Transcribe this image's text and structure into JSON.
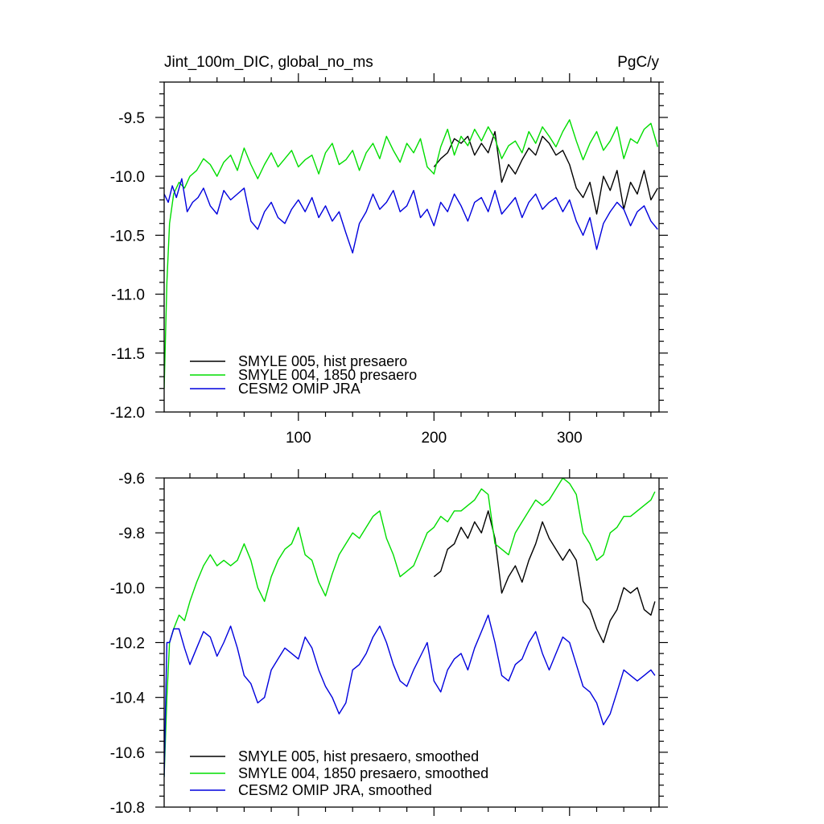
{
  "header": {
    "title": "Jint_100m_DIC, global_no_ms",
    "units": "PgC/y"
  },
  "chart_data": [
    {
      "type": "line",
      "xlim": [
        1,
        366
      ],
      "ylim": [
        -12.0,
        -9.2
      ],
      "xticks": [
        100,
        200,
        300
      ],
      "xtick_labels": [
        "100",
        "200",
        "300"
      ],
      "yticks": [
        -12.0,
        -11.5,
        -11.0,
        -10.5,
        -10.0,
        -9.5
      ],
      "ytick_labels": [
        "-12.0",
        "-11.5",
        "-11.0",
        "-10.5",
        "-10.0",
        "-9.5"
      ],
      "legend_position": "bottom-left",
      "series": [
        {
          "name": "SMYLE 005, hist presaero",
          "color": "#000000",
          "x": [
            200,
            205,
            210,
            215,
            220,
            225,
            230,
            235,
            240,
            245,
            250,
            255,
            260,
            265,
            270,
            275,
            280,
            285,
            290,
            295,
            300,
            305,
            310,
            315,
            320,
            325,
            330,
            335,
            340,
            345,
            350,
            355,
            360,
            365
          ],
          "y": [
            -9.92,
            -9.85,
            -9.8,
            -9.68,
            -9.72,
            -9.66,
            -9.82,
            -9.72,
            -9.8,
            -9.62,
            -10.05,
            -9.9,
            -9.98,
            -9.86,
            -9.76,
            -9.82,
            -9.66,
            -9.72,
            -9.82,
            -9.78,
            -9.9,
            -10.1,
            -10.18,
            -10.05,
            -10.32,
            -10.0,
            -10.12,
            -9.95,
            -10.28,
            -10.05,
            -10.15,
            -9.95,
            -10.2,
            -10.1
          ]
        },
        {
          "name": "SMYLE 004, 1850 presaero",
          "color": "#00dd00",
          "x": [
            1,
            3,
            5,
            8,
            12,
            16,
            20,
            25,
            30,
            35,
            40,
            45,
            50,
            55,
            60,
            65,
            70,
            75,
            80,
            85,
            90,
            95,
            100,
            105,
            110,
            115,
            120,
            125,
            130,
            135,
            140,
            145,
            150,
            155,
            160,
            165,
            170,
            175,
            180,
            185,
            190,
            195,
            200,
            205,
            210,
            215,
            220,
            225,
            230,
            235,
            240,
            245,
            250,
            255,
            260,
            265,
            270,
            275,
            280,
            285,
            290,
            295,
            300,
            305,
            310,
            315,
            320,
            325,
            330,
            335,
            340,
            345,
            350,
            355,
            360,
            365
          ],
          "y": [
            -11.8,
            -10.9,
            -10.4,
            -10.15,
            -10.05,
            -10.1,
            -10.0,
            -9.95,
            -9.85,
            -9.9,
            -10.0,
            -9.88,
            -9.82,
            -9.95,
            -9.76,
            -9.9,
            -10.02,
            -9.9,
            -9.8,
            -9.92,
            -9.85,
            -9.78,
            -9.92,
            -9.86,
            -9.82,
            -9.98,
            -9.8,
            -9.72,
            -9.9,
            -9.86,
            -9.78,
            -9.95,
            -9.8,
            -9.72,
            -9.85,
            -9.66,
            -9.78,
            -9.88,
            -9.72,
            -9.8,
            -9.68,
            -9.92,
            -9.98,
            -9.75,
            -9.6,
            -9.82,
            -9.66,
            -9.74,
            -9.6,
            -9.7,
            -9.58,
            -9.68,
            -9.85,
            -9.74,
            -9.7,
            -9.8,
            -9.62,
            -9.72,
            -9.58,
            -9.66,
            -9.75,
            -9.62,
            -9.52,
            -9.7,
            -9.86,
            -9.72,
            -9.62,
            -9.78,
            -9.7,
            -9.58,
            -9.85,
            -9.68,
            -9.72,
            -9.6,
            -9.55,
            -9.75
          ]
        },
        {
          "name": "CESM2 OMIP JRA",
          "color": "#0000dd",
          "x": [
            1,
            4,
            7,
            10,
            14,
            18,
            22,
            26,
            30,
            35,
            40,
            45,
            50,
            55,
            60,
            65,
            70,
            75,
            80,
            85,
            90,
            95,
            100,
            105,
            110,
            115,
            120,
            125,
            130,
            135,
            140,
            145,
            150,
            155,
            160,
            165,
            170,
            175,
            180,
            185,
            190,
            195,
            200,
            205,
            210,
            215,
            220,
            225,
            230,
            235,
            240,
            245,
            250,
            255,
            260,
            265,
            270,
            275,
            280,
            285,
            290,
            295,
            300,
            305,
            310,
            315,
            320,
            325,
            330,
            335,
            340,
            345,
            350,
            355,
            360,
            365
          ],
          "y": [
            -10.15,
            -10.22,
            -10.08,
            -10.18,
            -10.02,
            -10.3,
            -10.22,
            -10.18,
            -10.1,
            -10.25,
            -10.32,
            -10.12,
            -10.2,
            -10.15,
            -10.1,
            -10.38,
            -10.45,
            -10.3,
            -10.22,
            -10.35,
            -10.4,
            -10.28,
            -10.2,
            -10.3,
            -10.18,
            -10.35,
            -10.25,
            -10.38,
            -10.3,
            -10.48,
            -10.65,
            -10.4,
            -10.3,
            -10.15,
            -10.28,
            -10.22,
            -10.12,
            -10.3,
            -10.25,
            -10.12,
            -10.35,
            -10.28,
            -10.42,
            -10.22,
            -10.3,
            -10.15,
            -10.25,
            -10.38,
            -10.22,
            -10.18,
            -10.3,
            -10.12,
            -10.32,
            -10.25,
            -10.18,
            -10.35,
            -10.22,
            -10.15,
            -10.28,
            -10.22,
            -10.18,
            -10.3,
            -10.2,
            -10.38,
            -10.5,
            -10.35,
            -10.62,
            -10.4,
            -10.3,
            -10.22,
            -10.28,
            -10.42,
            -10.3,
            -10.25,
            -10.38,
            -10.45
          ]
        }
      ]
    },
    {
      "type": "line",
      "xlim": [
        1,
        366
      ],
      "ylim": [
        -10.8,
        -9.6
      ],
      "xticks": [
        100,
        200,
        300
      ],
      "yticks": [
        -10.8,
        -10.6,
        -10.4,
        -10.2,
        -10.0,
        -9.8,
        -9.6
      ],
      "ytick_labels": [
        "-10.8",
        "-10.6",
        "-10.4",
        "-10.2",
        "-10.0",
        "-9.8",
        "-9.6"
      ],
      "legend_position": "bottom-left",
      "series": [
        {
          "name": "SMYLE 005, hist presaero, smoothed",
          "color": "#000000",
          "x": [
            200,
            205,
            210,
            215,
            220,
            225,
            230,
            235,
            240,
            245,
            250,
            255,
            260,
            265,
            270,
            275,
            280,
            285,
            290,
            295,
            300,
            305,
            310,
            315,
            320,
            325,
            330,
            335,
            340,
            345,
            350,
            355,
            360,
            363
          ],
          "y": [
            -9.96,
            -9.94,
            -9.86,
            -9.84,
            -9.78,
            -9.82,
            -9.76,
            -9.8,
            -9.72,
            -9.82,
            -10.02,
            -9.96,
            -9.92,
            -9.98,
            -9.9,
            -9.84,
            -9.76,
            -9.82,
            -9.86,
            -9.9,
            -9.86,
            -9.9,
            -10.05,
            -10.08,
            -10.15,
            -10.2,
            -10.12,
            -10.08,
            -10.0,
            -10.02,
            -10.0,
            -10.08,
            -10.1,
            -10.05
          ]
        },
        {
          "name": "SMYLE 004, 1850 presaero, smoothed",
          "color": "#00dd00",
          "x": [
            1,
            3,
            5,
            8,
            12,
            16,
            20,
            25,
            30,
            35,
            40,
            45,
            50,
            55,
            60,
            65,
            70,
            75,
            80,
            85,
            90,
            95,
            100,
            105,
            110,
            115,
            120,
            125,
            130,
            135,
            140,
            145,
            150,
            155,
            160,
            165,
            170,
            175,
            180,
            185,
            190,
            195,
            200,
            205,
            210,
            215,
            220,
            225,
            230,
            235,
            240,
            245,
            250,
            255,
            260,
            265,
            270,
            275,
            280,
            285,
            290,
            295,
            300,
            305,
            310,
            315,
            320,
            325,
            330,
            335,
            340,
            345,
            350,
            355,
            360,
            363
          ],
          "y": [
            -10.69,
            -10.4,
            -10.2,
            -10.15,
            -10.1,
            -10.12,
            -10.05,
            -9.98,
            -9.92,
            -9.88,
            -9.92,
            -9.9,
            -9.92,
            -9.9,
            -9.84,
            -9.9,
            -10.0,
            -10.05,
            -9.96,
            -9.9,
            -9.86,
            -9.84,
            -9.78,
            -9.88,
            -9.9,
            -9.98,
            -10.03,
            -9.95,
            -9.88,
            -9.84,
            -9.8,
            -9.82,
            -9.78,
            -9.74,
            -9.72,
            -9.82,
            -9.88,
            -9.96,
            -9.94,
            -9.92,
            -9.86,
            -9.8,
            -9.78,
            -9.74,
            -9.76,
            -9.72,
            -9.72,
            -9.7,
            -9.68,
            -9.64,
            -9.66,
            -9.84,
            -9.86,
            -9.88,
            -9.8,
            -9.76,
            -9.72,
            -9.68,
            -9.7,
            -9.68,
            -9.64,
            -9.6,
            -9.62,
            -9.66,
            -9.8,
            -9.84,
            -9.9,
            -9.88,
            -9.8,
            -9.78,
            -9.74,
            -9.74,
            -9.72,
            -9.7,
            -9.68,
            -9.65
          ]
        },
        {
          "name": "CESM2 OMIP JRA, smoothed",
          "color": "#0000dd",
          "x": [
            1,
            3,
            5,
            8,
            12,
            16,
            20,
            25,
            30,
            35,
            40,
            45,
            50,
            55,
            60,
            65,
            70,
            75,
            80,
            85,
            90,
            95,
            100,
            105,
            110,
            115,
            120,
            125,
            130,
            135,
            140,
            145,
            150,
            155,
            160,
            165,
            170,
            175,
            180,
            185,
            190,
            195,
            200,
            205,
            210,
            215,
            220,
            225,
            230,
            235,
            240,
            245,
            250,
            255,
            260,
            265,
            270,
            275,
            280,
            285,
            290,
            295,
            300,
            305,
            310,
            315,
            320,
            325,
            330,
            335,
            340,
            345,
            350,
            355,
            360,
            363
          ],
          "y": [
            -10.69,
            -10.2,
            -10.2,
            -10.15,
            -10.15,
            -10.22,
            -10.28,
            -10.22,
            -10.16,
            -10.18,
            -10.25,
            -10.2,
            -10.14,
            -10.22,
            -10.32,
            -10.35,
            -10.42,
            -10.4,
            -10.3,
            -10.26,
            -10.22,
            -10.24,
            -10.26,
            -10.18,
            -10.22,
            -10.3,
            -10.36,
            -10.4,
            -10.46,
            -10.42,
            -10.3,
            -10.28,
            -10.24,
            -10.18,
            -10.14,
            -10.2,
            -10.28,
            -10.34,
            -10.36,
            -10.3,
            -10.25,
            -10.2,
            -10.34,
            -10.38,
            -10.3,
            -10.26,
            -10.24,
            -10.3,
            -10.22,
            -10.16,
            -10.1,
            -10.2,
            -10.32,
            -10.34,
            -10.28,
            -10.26,
            -10.2,
            -10.16,
            -10.24,
            -10.3,
            -10.24,
            -10.18,
            -10.2,
            -10.28,
            -10.36,
            -10.38,
            -10.42,
            -10.5,
            -10.46,
            -10.38,
            -10.3,
            -10.32,
            -10.34,
            -10.32,
            -10.3,
            -10.32
          ]
        }
      ]
    }
  ]
}
